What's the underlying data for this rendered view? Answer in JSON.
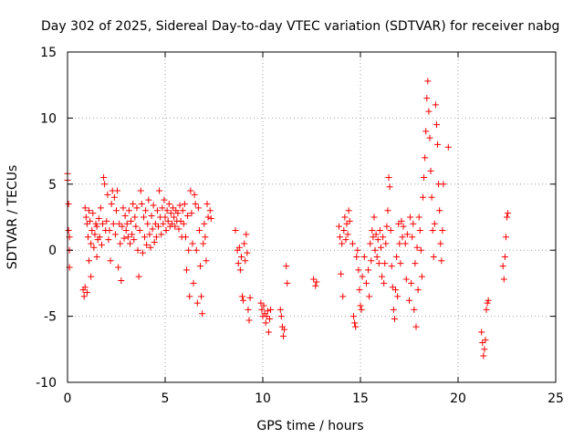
{
  "chart_data": {
    "type": "scatter",
    "title": "Day 302 of 2025, Sidereal Day-to-day VTEC variation (SDTVAR) for receiver nabg",
    "xlabel": "GPS time / hours",
    "ylabel": "SDTVAR / TECUs",
    "xlim": [
      0,
      25
    ],
    "ylim": [
      -10,
      15
    ],
    "xticks": [
      0,
      5,
      10,
      15,
      20,
      25
    ],
    "yticks": [
      -10,
      -5,
      0,
      5,
      10,
      15
    ],
    "x_tick_labels": [
      "0",
      "5",
      "10",
      "15",
      "20",
      "25"
    ],
    "y_tick_labels": [
      "-10",
      "-5",
      "0",
      "5",
      "10",
      "15"
    ],
    "grid": true,
    "marker": "+",
    "color": "#ff0000",
    "series": [
      {
        "name": "SDTVAR",
        "points": [
          [
            0.0,
            5.8
          ],
          [
            0.0,
            5.3
          ],
          [
            0.05,
            3.5
          ],
          [
            0.05,
            1.5
          ],
          [
            0.1,
            0.0
          ],
          [
            0.1,
            -1.3
          ],
          [
            0.1,
            1.0
          ],
          [
            0.8,
            -3.0
          ],
          [
            0.85,
            -3.5
          ],
          [
            0.9,
            -2.8
          ],
          [
            0.9,
            3.2
          ],
          [
            0.95,
            2.5
          ],
          [
            1.0,
            2.0
          ],
          [
            1.0,
            -3.2
          ],
          [
            1.05,
            1.0
          ],
          [
            1.1,
            -0.8
          ],
          [
            1.1,
            3.0
          ],
          [
            1.15,
            2.2
          ],
          [
            1.2,
            0.5
          ],
          [
            1.2,
            -2.0
          ],
          [
            1.25,
            1.5
          ],
          [
            1.3,
            2.8
          ],
          [
            1.35,
            0.2
          ],
          [
            1.4,
            1.2
          ],
          [
            1.45,
            2.0
          ],
          [
            1.5,
            -0.5
          ],
          [
            1.5,
            1.8
          ],
          [
            1.55,
            0.8
          ],
          [
            1.6,
            2.4
          ],
          [
            1.65,
            1.0
          ],
          [
            1.7,
            3.2
          ],
          [
            1.75,
            0.4
          ],
          [
            1.8,
            2.0
          ],
          [
            1.85,
            5.5
          ],
          [
            1.9,
            5.0
          ],
          [
            1.95,
            1.5
          ],
          [
            2.0,
            2.2
          ],
          [
            2.05,
            4.2
          ],
          [
            2.1,
            0.8
          ],
          [
            2.15,
            1.5
          ],
          [
            2.2,
            -0.8
          ],
          [
            2.25,
            3.5
          ],
          [
            2.3,
            4.5
          ],
          [
            2.35,
            2.0
          ],
          [
            2.4,
            4.0
          ],
          [
            2.45,
            1.2
          ],
          [
            2.5,
            3.0
          ],
          [
            2.55,
            4.5
          ],
          [
            2.6,
            -1.3
          ],
          [
            2.65,
            2.0
          ],
          [
            2.7,
            0.5
          ],
          [
            2.75,
            -2.3
          ],
          [
            2.8,
            1.8
          ],
          [
            2.85,
            3.2
          ],
          [
            2.9,
            0.9
          ],
          [
            2.95,
            2.6
          ],
          [
            3.0,
            1.5
          ],
          [
            3.05,
            2.0
          ],
          [
            3.1,
            1.0
          ],
          [
            3.15,
            3.0
          ],
          [
            3.2,
            0.5
          ],
          [
            3.25,
            2.2
          ],
          [
            3.3,
            1.2
          ],
          [
            3.35,
            3.5
          ],
          [
            3.4,
            0.8
          ],
          [
            3.45,
            2.5
          ],
          [
            3.5,
            1.8
          ],
          [
            3.55,
            3.2
          ],
          [
            3.6,
            0.0
          ],
          [
            3.65,
            -2.0
          ],
          [
            3.7,
            1.5
          ],
          [
            3.75,
            4.5
          ],
          [
            3.8,
            3.5
          ],
          [
            3.85,
            -0.2
          ],
          [
            3.9,
            2.5
          ],
          [
            3.95,
            1.0
          ],
          [
            4.0,
            3.0
          ],
          [
            4.05,
            0.4
          ],
          [
            4.1,
            2.0
          ],
          [
            4.15,
            3.8
          ],
          [
            4.2,
            1.2
          ],
          [
            4.25,
            0.2
          ],
          [
            4.3,
            2.6
          ],
          [
            4.35,
            1.6
          ],
          [
            4.4,
            3.4
          ],
          [
            4.45,
            0.6
          ],
          [
            4.5,
            2.0
          ],
          [
            4.55,
            1.0
          ],
          [
            4.6,
            3.0
          ],
          [
            4.65,
            1.8
          ],
          [
            4.7,
            4.5
          ],
          [
            4.75,
            2.5
          ],
          [
            4.8,
            1.2
          ],
          [
            4.85,
            3.2
          ],
          [
            4.9,
            2.0
          ],
          [
            4.95,
            3.8
          ],
          [
            5.0,
            2.5
          ],
          [
            5.05,
            1.5
          ],
          [
            5.1,
            3.0
          ],
          [
            5.15,
            2.2
          ],
          [
            5.2,
            3.5
          ],
          [
            5.25,
            1.8
          ],
          [
            5.3,
            2.8
          ],
          [
            5.35,
            2.0
          ],
          [
            5.4,
            3.2
          ],
          [
            5.45,
            2.5
          ],
          [
            5.5,
            1.8
          ],
          [
            5.55,
            3.0
          ],
          [
            5.6,
            2.2
          ],
          [
            5.65,
            2.8
          ],
          [
            5.7,
            1.6
          ],
          [
            5.75,
            3.4
          ],
          [
            5.8,
            2.2
          ],
          [
            5.85,
            1.0
          ],
          [
            5.9,
            3.0
          ],
          [
            5.95,
            2.0
          ],
          [
            6.0,
            3.5
          ],
          [
            6.05,
            1.0
          ],
          [
            6.1,
            -1.5
          ],
          [
            6.15,
            2.6
          ],
          [
            6.2,
            0.0
          ],
          [
            6.25,
            -3.5
          ],
          [
            6.3,
            4.5
          ],
          [
            6.35,
            2.8
          ],
          [
            6.4,
            0.5
          ],
          [
            6.45,
            -2.5
          ],
          [
            6.5,
            4.2
          ],
          [
            6.55,
            3.5
          ],
          [
            6.6,
            0.0
          ],
          [
            6.65,
            -4.0
          ],
          [
            6.7,
            3.2
          ],
          [
            6.75,
            1.5
          ],
          [
            6.8,
            -1.2
          ],
          [
            6.85,
            -3.5
          ],
          [
            6.9,
            -4.8
          ],
          [
            6.95,
            0.5
          ],
          [
            7.0,
            2.0
          ],
          [
            7.05,
            1.0
          ],
          [
            7.1,
            -0.8
          ],
          [
            7.15,
            3.5
          ],
          [
            7.2,
            2.5
          ],
          [
            7.3,
            3.0
          ],
          [
            7.35,
            2.4
          ],
          [
            8.6,
            1.5
          ],
          [
            8.7,
            0.0
          ],
          [
            8.75,
            -1.0
          ],
          [
            8.8,
            0.2
          ],
          [
            8.85,
            -1.5
          ],
          [
            8.9,
            -0.5
          ],
          [
            8.95,
            -3.5
          ],
          [
            9.0,
            -3.8
          ],
          [
            9.05,
            0.5
          ],
          [
            9.1,
            -0.8
          ],
          [
            9.15,
            1.2
          ],
          [
            9.2,
            -0.2
          ],
          [
            9.25,
            -4.5
          ],
          [
            9.3,
            -5.3
          ],
          [
            9.35,
            -3.6
          ],
          [
            9.9,
            -4.0
          ],
          [
            9.95,
            -4.5
          ],
          [
            10.0,
            -5.0
          ],
          [
            10.05,
            -4.2
          ],
          [
            10.1,
            -4.8
          ],
          [
            10.15,
            -5.5
          ],
          [
            10.2,
            -5.0
          ],
          [
            10.25,
            -4.6
          ],
          [
            10.3,
            -6.2
          ],
          [
            10.35,
            -5.2
          ],
          [
            10.4,
            -4.5
          ],
          [
            10.9,
            -4.5
          ],
          [
            10.95,
            -5.0
          ],
          [
            11.0,
            -5.8
          ],
          [
            11.05,
            -6.5
          ],
          [
            11.1,
            -6.0
          ],
          [
            11.2,
            -1.2
          ],
          [
            11.25,
            -2.5
          ],
          [
            12.6,
            -2.2
          ],
          [
            12.7,
            -2.7
          ],
          [
            12.75,
            -2.4
          ],
          [
            13.9,
            1.8
          ],
          [
            13.95,
            1.0
          ],
          [
            14.0,
            -1.8
          ],
          [
            14.05,
            0.5
          ],
          [
            14.1,
            -3.5
          ],
          [
            14.15,
            1.5
          ],
          [
            14.2,
            2.5
          ],
          [
            14.25,
            0.8
          ],
          [
            14.3,
            2.0
          ],
          [
            14.35,
            1.2
          ],
          [
            14.4,
            3.0
          ],
          [
            14.45,
            2.2
          ],
          [
            14.6,
            0.5
          ],
          [
            14.65,
            -5.0
          ],
          [
            14.7,
            -5.5
          ],
          [
            14.75,
            -5.8
          ],
          [
            14.8,
            -0.5
          ],
          [
            14.85,
            0.0
          ],
          [
            14.9,
            -1.5
          ],
          [
            14.95,
            -3.0
          ],
          [
            15.0,
            -4.2
          ],
          [
            15.05,
            -4.5
          ],
          [
            15.1,
            -2.0
          ],
          [
            15.2,
            -0.5
          ],
          [
            15.3,
            -2.5
          ],
          [
            15.4,
            -1.5
          ],
          [
            15.45,
            -3.5
          ],
          [
            15.5,
            0.5
          ],
          [
            15.55,
            -0.8
          ],
          [
            15.6,
            1.5
          ],
          [
            15.65,
            1.0
          ],
          [
            15.7,
            2.5
          ],
          [
            15.75,
            0.0
          ],
          [
            15.8,
            1.2
          ],
          [
            15.85,
            -0.5
          ],
          [
            15.9,
            0.8
          ],
          [
            15.95,
            -1.0
          ],
          [
            16.0,
            1.5
          ],
          [
            16.05,
            0.2
          ],
          [
            16.1,
            -2.0
          ],
          [
            16.15,
            1.0
          ],
          [
            16.2,
            -2.5
          ],
          [
            16.25,
            -1.0
          ],
          [
            16.3,
            0.5
          ],
          [
            16.35,
            1.8
          ],
          [
            16.4,
            3.0
          ],
          [
            16.45,
            5.5
          ],
          [
            16.5,
            4.8
          ],
          [
            16.55,
            1.5
          ],
          [
            16.6,
            -1.2
          ],
          [
            16.65,
            -2.8
          ],
          [
            16.7,
            -4.5
          ],
          [
            16.75,
            -5.2
          ],
          [
            16.8,
            -3.0
          ],
          [
            16.85,
            -0.5
          ],
          [
            16.9,
            -3.5
          ],
          [
            16.95,
            2.0
          ],
          [
            17.0,
            0.5
          ],
          [
            17.05,
            -1.0
          ],
          [
            17.1,
            2.2
          ],
          [
            17.15,
            1.0
          ],
          [
            17.2,
            1.8
          ],
          [
            17.3,
            0.5
          ],
          [
            17.35,
            -2.2
          ],
          [
            17.4,
            1.2
          ],
          [
            17.5,
            -3.8
          ],
          [
            17.55,
            2.5
          ],
          [
            17.6,
            -2.5
          ],
          [
            17.65,
            1.0
          ],
          [
            17.7,
            2.0
          ],
          [
            17.75,
            -4.5
          ],
          [
            17.8,
            -1.0
          ],
          [
            17.85,
            -5.8
          ],
          [
            17.9,
            0.2
          ],
          [
            17.95,
            -3.0
          ],
          [
            18.0,
            2.5
          ],
          [
            18.05,
            1.5
          ],
          [
            18.1,
            0.0
          ],
          [
            18.15,
            -2.0
          ],
          [
            18.2,
            4.0
          ],
          [
            18.25,
            5.5
          ],
          [
            18.3,
            7.0
          ],
          [
            18.35,
            9.0
          ],
          [
            18.4,
            11.5
          ],
          [
            18.45,
            12.8
          ],
          [
            18.5,
            10.5
          ],
          [
            18.55,
            8.5
          ],
          [
            18.6,
            6.0
          ],
          [
            18.65,
            4.0
          ],
          [
            18.7,
            1.5
          ],
          [
            18.75,
            -0.5
          ],
          [
            18.8,
            2.0
          ],
          [
            18.85,
            11.0
          ],
          [
            18.9,
            9.5
          ],
          [
            18.95,
            8.0
          ],
          [
            19.0,
            5.0
          ],
          [
            19.05,
            3.0
          ],
          [
            19.1,
            0.5
          ],
          [
            19.15,
            -0.8
          ],
          [
            19.2,
            1.5
          ],
          [
            19.25,
            5.0
          ],
          [
            19.5,
            7.8
          ],
          [
            21.2,
            -6.2
          ],
          [
            21.25,
            -7.0
          ],
          [
            21.3,
            -8.0
          ],
          [
            21.35,
            -7.5
          ],
          [
            21.4,
            -6.8
          ],
          [
            21.45,
            -4.5
          ],
          [
            21.5,
            -4.0
          ],
          [
            21.55,
            -3.8
          ],
          [
            22.3,
            -1.2
          ],
          [
            22.35,
            -2.2
          ],
          [
            22.4,
            -0.5
          ],
          [
            22.45,
            1.0
          ],
          [
            22.5,
            2.5
          ],
          [
            22.55,
            2.8
          ]
        ]
      }
    ]
  }
}
